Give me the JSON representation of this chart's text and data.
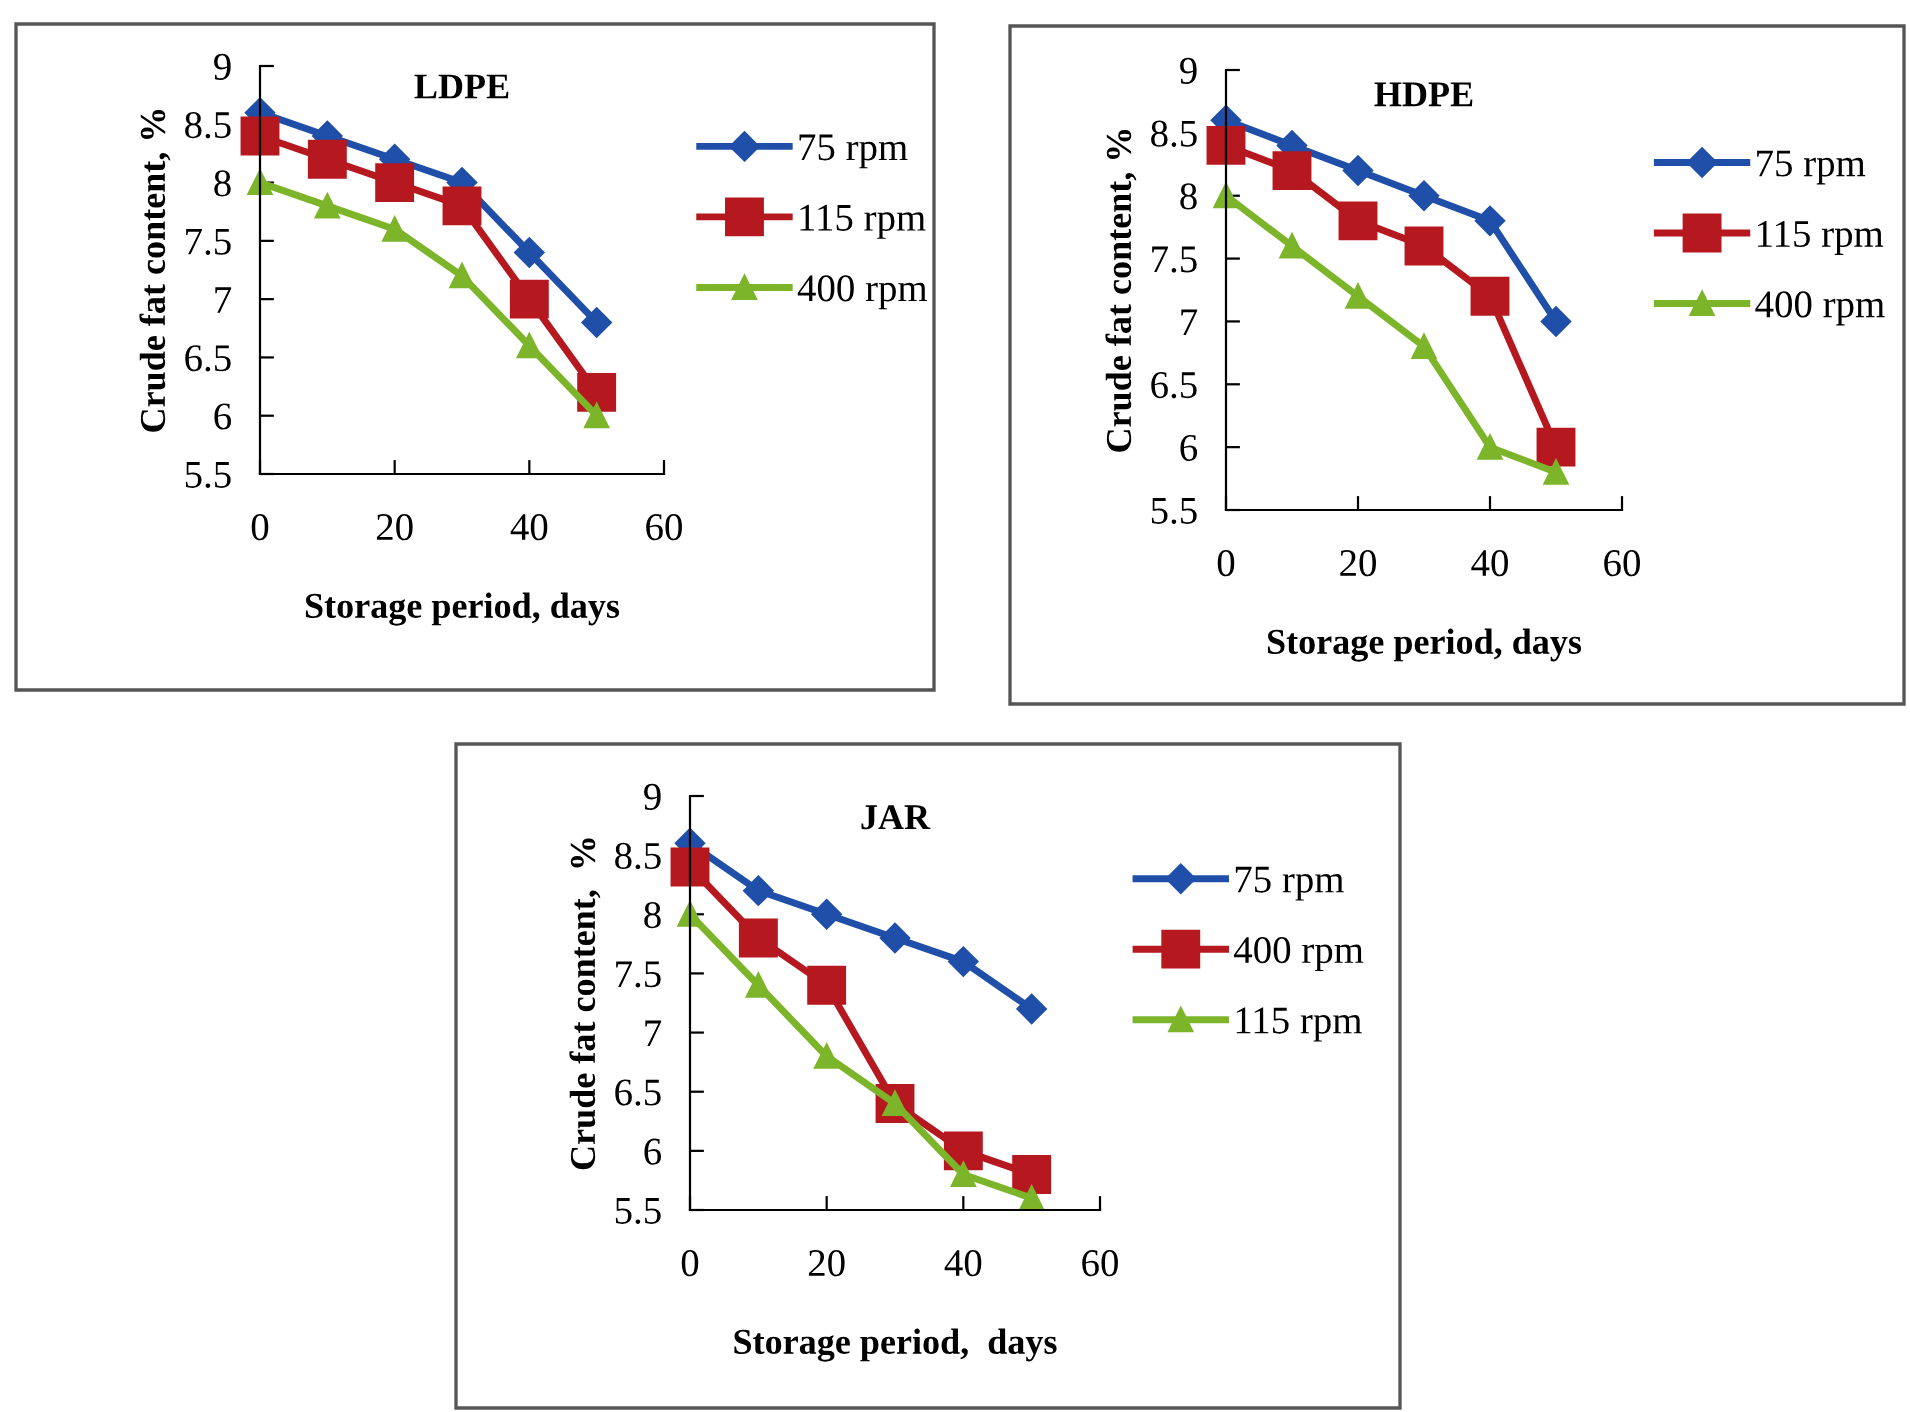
{
  "chart_data": [
    {
      "type": "line",
      "title": "LDPE",
      "xlabel": "Storage period, days",
      "ylabel": "Crude fat content, %",
      "x": [
        0,
        10,
        20,
        30,
        40,
        50
      ],
      "xlim": [
        0,
        60
      ],
      "xticks": [
        0,
        20,
        40,
        60
      ],
      "ylim": [
        5.5,
        9
      ],
      "yticks": [
        5.5,
        6,
        6.5,
        7,
        7.5,
        8,
        8.5,
        9
      ],
      "grid": false,
      "legend": "right",
      "series": [
        {
          "name": "75 rpm",
          "color": "#1f4fa8",
          "marker": "diamond",
          "values": [
            8.6,
            8.4,
            8.2,
            8.0,
            7.4,
            6.8
          ]
        },
        {
          "name": "115 rpm",
          "color": "#b5181e",
          "marker": "square",
          "values": [
            8.4,
            8.2,
            8.0,
            7.8,
            7.0,
            6.2
          ]
        },
        {
          "name": "400 rpm",
          "color": "#7db52a",
          "marker": "triangle",
          "values": [
            8.0,
            7.8,
            7.6,
            7.2,
            6.6,
            6.0
          ]
        }
      ]
    },
    {
      "type": "line",
      "title": "HDPE",
      "xlabel": "Storage period, days",
      "ylabel": "Crude fat content, %",
      "x": [
        0,
        10,
        20,
        30,
        40,
        50
      ],
      "xlim": [
        0,
        60
      ],
      "xticks": [
        0,
        20,
        40,
        60
      ],
      "ylim": [
        5.5,
        9
      ],
      "yticks": [
        5.5,
        6,
        6.5,
        7,
        7.5,
        8,
        8.5,
        9
      ],
      "grid": false,
      "legend": "right",
      "series": [
        {
          "name": "75 rpm",
          "color": "#1f4fa8",
          "marker": "diamond",
          "values": [
            8.6,
            8.4,
            8.2,
            8.0,
            7.8,
            7.0
          ]
        },
        {
          "name": "115 rpm",
          "color": "#b5181e",
          "marker": "square",
          "values": [
            8.4,
            8.2,
            7.8,
            7.6,
            7.2,
            6.0
          ]
        },
        {
          "name": "400 rpm",
          "color": "#7db52a",
          "marker": "triangle",
          "values": [
            8.0,
            7.6,
            7.2,
            6.8,
            6.0,
            5.8
          ]
        }
      ]
    },
    {
      "type": "line",
      "title": "JAR",
      "xlabel": "Storage period,  days",
      "ylabel": "Crude fat content,  %",
      "x": [
        0,
        10,
        20,
        30,
        40,
        50
      ],
      "xlim": [
        0,
        60
      ],
      "xticks": [
        0,
        20,
        40,
        60
      ],
      "ylim": [
        5.5,
        9
      ],
      "yticks": [
        5.5,
        6,
        6.5,
        7,
        7.5,
        8,
        8.5,
        9
      ],
      "grid": false,
      "legend": "right",
      "series": [
        {
          "name": "75 rpm",
          "color": "#1f4fa8",
          "marker": "diamond",
          "values": [
            8.6,
            8.2,
            8.0,
            7.8,
            7.6,
            7.2
          ]
        },
        {
          "name": "400 rpm",
          "color": "#b5181e",
          "marker": "square",
          "values": [
            8.4,
            7.8,
            7.4,
            6.4,
            6.0,
            5.8
          ]
        },
        {
          "name": "115 rpm",
          "color": "#7db52a",
          "marker": "triangle",
          "values": [
            8.0,
            7.4,
            6.8,
            6.4,
            5.8,
            5.6
          ]
        }
      ]
    }
  ]
}
